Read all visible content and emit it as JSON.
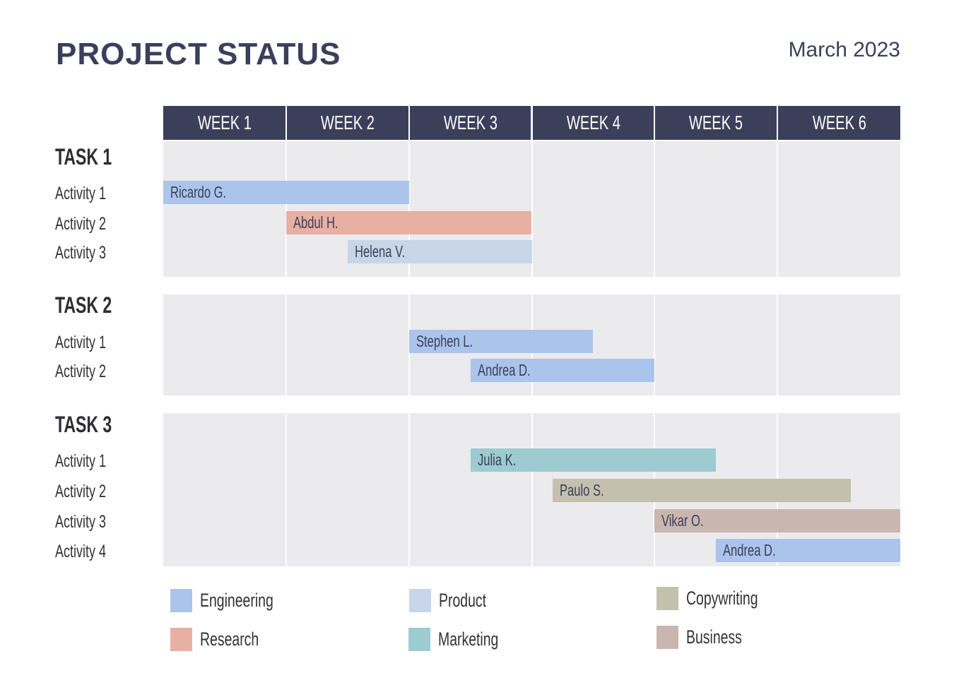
{
  "header": {
    "title": "PROJECT STATUS",
    "date": "March 2023"
  },
  "colors": {
    "header": "#3b3f5a",
    "panel": "#ebebed",
    "Engineering": "#abc4eb",
    "Research": "#e8afa3",
    "Product": "#c7d6e8",
    "Marketing": "#9ccccf",
    "Copywriting": "#c3c0ae",
    "Business": "#c9b6af"
  },
  "chart_data": {
    "type": "bar",
    "orientation": "horizontal-gantt",
    "categories": [
      "WEEK 1",
      "WEEK 2",
      "WEEK 3",
      "WEEK 4",
      "WEEK 5",
      "WEEK 6"
    ],
    "xlim_weeks": [
      0,
      6
    ],
    "grid": true,
    "legend_placement": "bottom",
    "legend": [
      "Engineering",
      "Product",
      "Copywriting",
      "Research",
      "Marketing",
      "Business"
    ],
    "tasks": [
      {
        "name": "TASK 1",
        "activities": [
          {
            "label": "Activity 1",
            "person": "Ricardo G.",
            "category": "Engineering",
            "start": 0,
            "end": 2
          },
          {
            "label": "Activity 2",
            "person": "Abdul H.",
            "category": "Research",
            "start": 1,
            "end": 3
          },
          {
            "label": "Activity 3",
            "person": "Helena V.",
            "category": "Product",
            "start": 1.5,
            "end": 3
          }
        ]
      },
      {
        "name": "TASK 2",
        "activities": [
          {
            "label": "Activity 1",
            "person": "Stephen L.",
            "category": "Engineering",
            "start": 2,
            "end": 3.5
          },
          {
            "label": "Activity 2",
            "person": "Andrea D.",
            "category": "Engineering",
            "start": 2.5,
            "end": 4
          }
        ]
      },
      {
        "name": "TASK 3",
        "activities": [
          {
            "label": "Activity 1",
            "person": "Julia K.",
            "category": "Marketing",
            "start": 2.5,
            "end": 4.5
          },
          {
            "label": "Activity 2",
            "person": "Paulo S.",
            "category": "Copywriting",
            "start": 3.17,
            "end": 5.6
          },
          {
            "label": "Activity 3",
            "person": "Vikar O.",
            "category": "Business",
            "start": 4,
            "end": 6
          },
          {
            "label": "Activity 4",
            "person": "Andrea D.",
            "category": "Engineering",
            "start": 4.5,
            "end": 6
          }
        ]
      }
    ]
  }
}
